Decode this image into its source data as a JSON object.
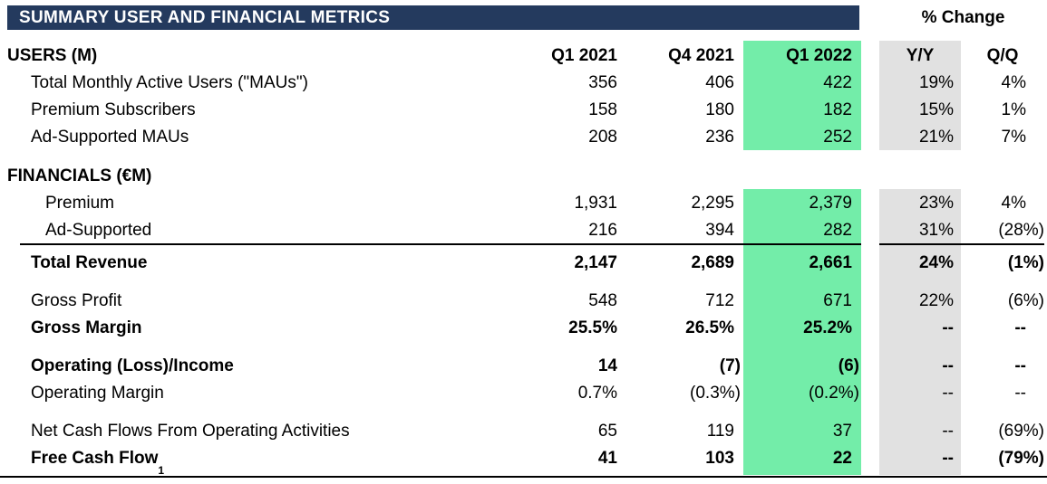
{
  "banner": {
    "title": "SUMMARY USER AND FINANCIAL METRICS"
  },
  "pct_change_label": "% Change",
  "colors": {
    "banner_bg": "#243A5E",
    "highlight_green": "#73EDA9",
    "highlight_gray": "#E1E1E1",
    "text": "#000000",
    "banner_text": "#FFFFFF"
  },
  "table": {
    "header_row": {
      "label": "USERS (M)",
      "columns": [
        "Q1 2021",
        "Q4 2021",
        "Q1 2022",
        "Y/Y",
        "Q/Q"
      ]
    },
    "rows": [
      {
        "id": "mau",
        "label": "Total Monthly Active Users (\"MAUs\")",
        "indent": 1,
        "bold": false,
        "values": [
          "356",
          "406",
          "422",
          "19%",
          "4%"
        ]
      },
      {
        "id": "premium_subscribers",
        "label": "Premium Subscribers",
        "indent": 1,
        "bold": false,
        "values": [
          "158",
          "180",
          "182",
          "15%",
          "1%"
        ]
      },
      {
        "id": "ad_supported_maus",
        "label": "Ad-Supported MAUs",
        "indent": 1,
        "bold": false,
        "values": [
          "208",
          "236",
          "252",
          "21%",
          "7%"
        ]
      },
      {
        "id": "financials_section",
        "label": "FINANCIALS (€M)",
        "indent": 0,
        "bold": true,
        "section": true,
        "values": [
          "",
          "",
          "",
          "",
          ""
        ]
      },
      {
        "id": "premium_revenue",
        "label": "Premium",
        "indent": 2,
        "bold": false,
        "values": [
          "1,931",
          "2,295",
          "2,379",
          "23%",
          "4%"
        ]
      },
      {
        "id": "ad_supported_revenue",
        "label": "Ad-Supported",
        "indent": 2,
        "bold": false,
        "values": [
          "216",
          "394",
          "282",
          "31%",
          "(28%)"
        ]
      },
      {
        "id": "total_revenue",
        "label": "Total Revenue",
        "indent": 1,
        "bold": true,
        "rule_above": true,
        "values": [
          "2,147",
          "2,689",
          "2,661",
          "24%",
          "(1%)"
        ]
      },
      {
        "id": "gross_profit",
        "label": "Gross Profit",
        "indent": 1,
        "bold": false,
        "gap_before": true,
        "values": [
          "548",
          "712",
          "671",
          "22%",
          "(6%)"
        ]
      },
      {
        "id": "gross_margin",
        "label": "Gross Margin",
        "indent": 1,
        "bold": true,
        "values": [
          "25.5%",
          "26.5%",
          "25.2%",
          "--",
          "--"
        ]
      },
      {
        "id": "operating_loss_income",
        "label": "Operating (Loss)/Income",
        "indent": 1,
        "bold": true,
        "gap_before": true,
        "values": [
          "14",
          "(7)",
          "(6)",
          "--",
          "--"
        ]
      },
      {
        "id": "operating_margin",
        "label": "Operating Margin",
        "indent": 1,
        "bold": false,
        "values": [
          "0.7%",
          "(0.3%)",
          "(0.2%)",
          "--",
          "--"
        ]
      },
      {
        "id": "net_cash_flows",
        "label": "Net Cash Flows From Operating Activities",
        "indent": 1,
        "bold": false,
        "gap_before": true,
        "values": [
          "65",
          "119",
          "37",
          "--",
          "(69%)"
        ]
      },
      {
        "id": "free_cash_flow",
        "label": "Free Cash Flow",
        "footnote": "1",
        "indent": 1,
        "bold": true,
        "values": [
          "41",
          "103",
          "22",
          "--",
          "(79%)"
        ]
      }
    ]
  }
}
